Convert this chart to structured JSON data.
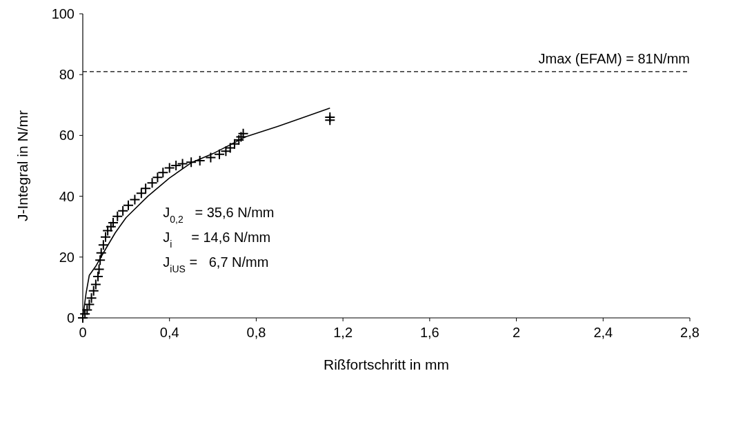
{
  "chart_data": {
    "type": "scatter",
    "xlabel": "Rißfortschritt in mm",
    "ylabel": "J-Integral in N/mr",
    "xlim": [
      0,
      2.8
    ],
    "xticks": [
      {
        "value": 0,
        "label": "0"
      },
      {
        "value": 0.4,
        "label": "0,4"
      },
      {
        "value": 0.8,
        "label": "0,8"
      },
      {
        "value": 1.2,
        "label": "1,2"
      },
      {
        "value": 1.6,
        "label": "1,6"
      },
      {
        "value": 2,
        "label": "2"
      },
      {
        "value": 2.4,
        "label": "2,4"
      },
      {
        "value": 2.8,
        "label": "2,8"
      }
    ],
    "ylim": [
      0,
      100
    ],
    "yticks": [
      0,
      20,
      40,
      60,
      80,
      100
    ],
    "marker": "cross",
    "series": [
      {
        "type": "line",
        "color": "#000000",
        "marker": "none",
        "line_style": "solid",
        "x": [
          0,
          0.015,
          0.03,
          0.06,
          0.1,
          0.15,
          0.2,
          0.3,
          0.4,
          0.5,
          0.6,
          0.75,
          0.9,
          1.0,
          1.14
        ],
        "values": [
          0,
          8,
          14,
          17,
          22,
          28,
          33,
          40,
          46,
          51,
          54,
          59.5,
          63,
          65.5,
          69
        ]
      },
      {
        "color": "#000000",
        "x": [
          0,
          0.01,
          0.02,
          0.03,
          0.04,
          0.05,
          0.06,
          0.07,
          0.075,
          0.08,
          0.085,
          0.095,
          0.105,
          0.115,
          0.13,
          0.14,
          0.16,
          0.185,
          0.21,
          0.24,
          0.27,
          0.29,
          0.32,
          0.345,
          0.37,
          0.4,
          0.43,
          0.46,
          0.5,
          0.54,
          0.59,
          0.63,
          0.66,
          0.68,
          0.7,
          0.72,
          0.73,
          0.74,
          1.14,
          1.14
        ],
        "values": [
          0,
          1.3,
          2.6,
          4.4,
          6.5,
          8.9,
          11,
          13.6,
          16,
          19,
          21.4,
          24,
          26.6,
          28.7,
          30,
          31.3,
          33.4,
          35.2,
          37,
          38.9,
          41,
          42.6,
          44.4,
          46.2,
          47.8,
          49.3,
          50.1,
          50.7,
          51.2,
          51.7,
          52.7,
          53.8,
          54.8,
          55.9,
          57.2,
          58.5,
          59.5,
          60.6,
          66,
          65
        ]
      }
    ],
    "ref_lines": [
      {
        "axis": "y",
        "value": 81,
        "label": "Jmax (EFAM) = 81N/mm",
        "color": "#000000",
        "line_style": "dashed"
      }
    ],
    "annotations": [
      "J$_{0,2}$   = 35,6 N/mm",
      "J$_{i}$     = 14,6 N/mm",
      "J$_{iUS}$ =   6,7 N/mm"
    ]
  }
}
